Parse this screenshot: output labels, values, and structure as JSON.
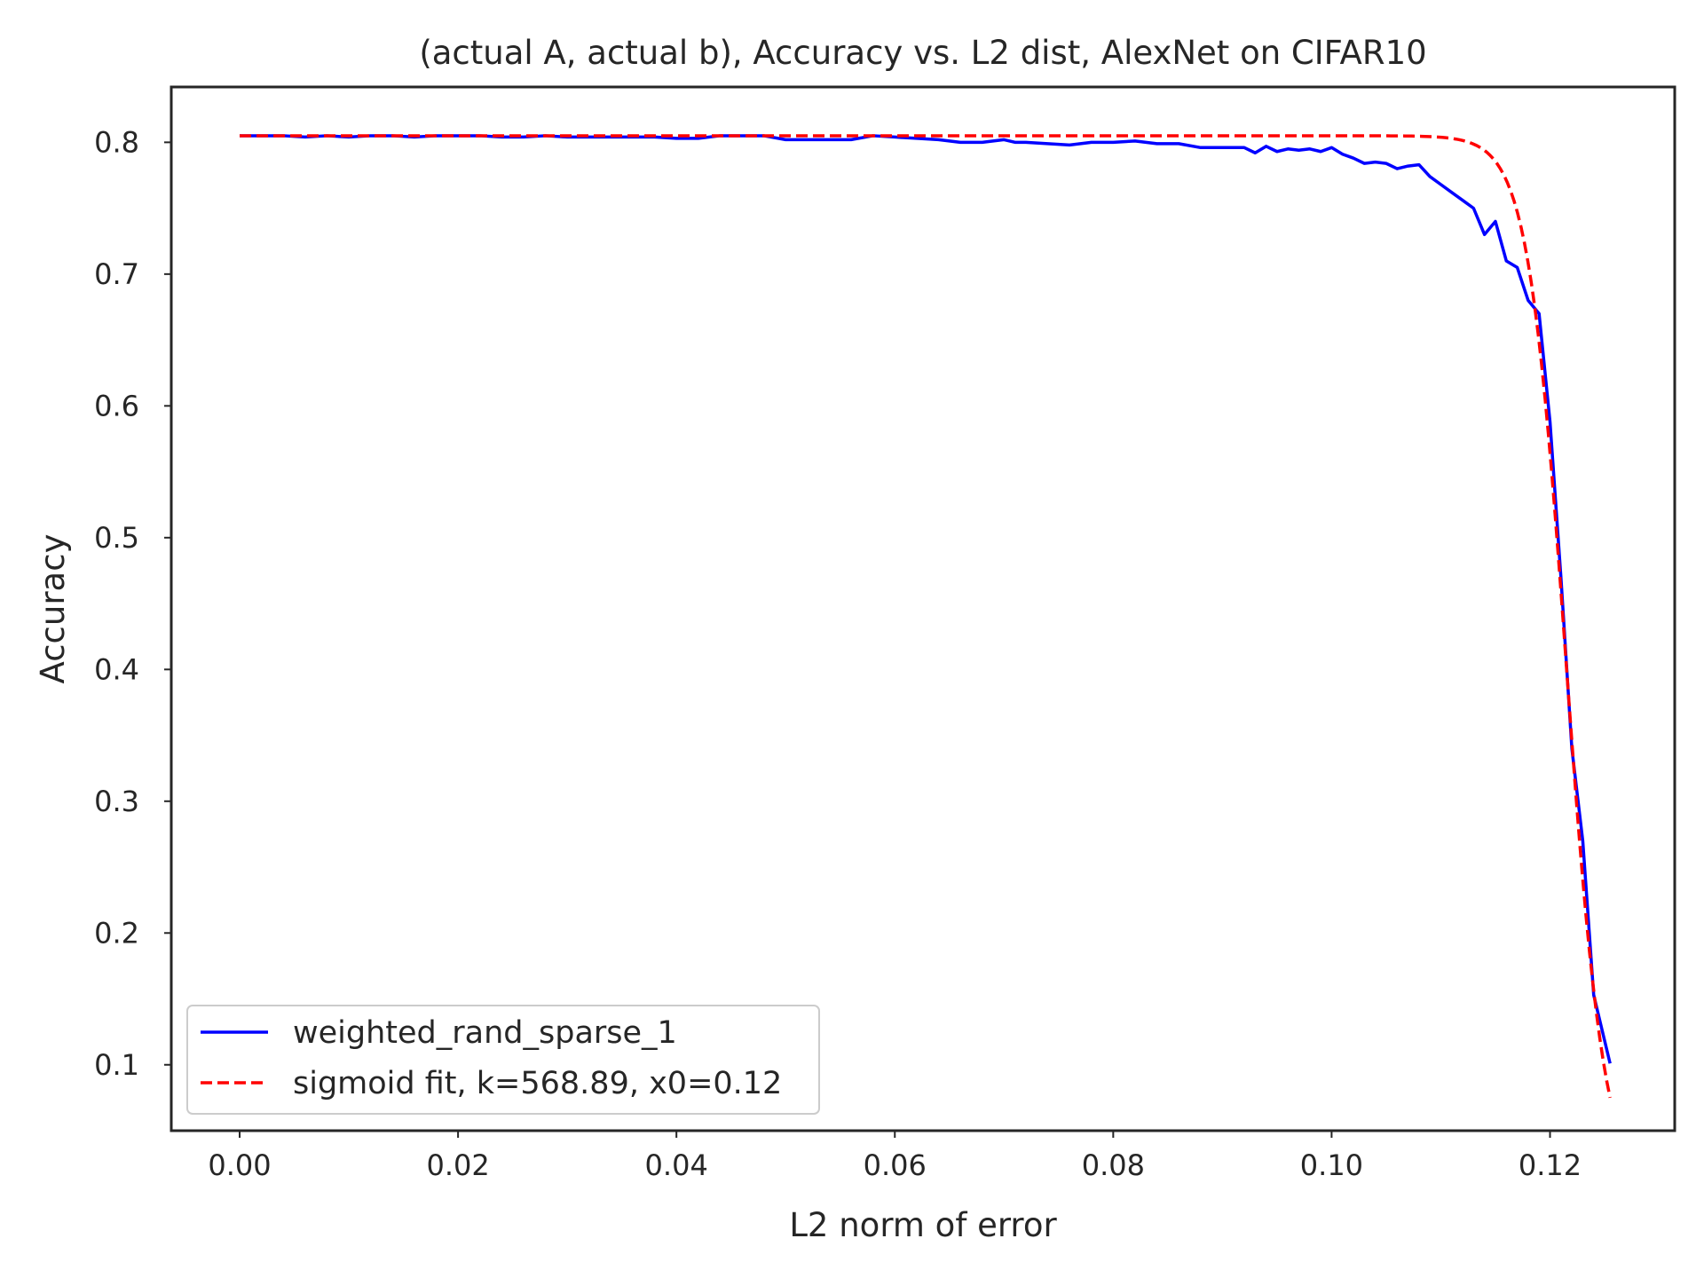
{
  "chart_data": {
    "type": "line",
    "title": "(actual A, actual b), Accuracy vs. L2 dist, AlexNet on CIFAR10",
    "xlabel": "L2 norm of error",
    "ylabel": "Accuracy",
    "xlim": [
      -0.00626,
      0.13142
    ],
    "ylim": [
      0.05,
      0.842
    ],
    "xticks": [
      0.0,
      0.02,
      0.04,
      0.06,
      0.08,
      0.1,
      0.12
    ],
    "xtick_labels": [
      "0.00",
      "0.02",
      "0.04",
      "0.06",
      "0.08",
      "0.10",
      "0.12"
    ],
    "yticks": [
      0.1,
      0.2,
      0.3,
      0.4,
      0.5,
      0.6,
      0.7,
      0.8
    ],
    "ytick_labels": [
      "0.1",
      "0.2",
      "0.3",
      "0.4",
      "0.5",
      "0.6",
      "0.7",
      "0.8"
    ],
    "grid": false,
    "legend": "lower-left",
    "series": [
      {
        "name": "weighted_rand_sparse_1",
        "color": "#0000ff",
        "style": "solid",
        "x": [
          0.0,
          0.002,
          0.004,
          0.006,
          0.008,
          0.01,
          0.012,
          0.014,
          0.016,
          0.018,
          0.02,
          0.022,
          0.024,
          0.026,
          0.028,
          0.03,
          0.032,
          0.034,
          0.036,
          0.038,
          0.04,
          0.042,
          0.044,
          0.046,
          0.048,
          0.05,
          0.052,
          0.054,
          0.056,
          0.058,
          0.06,
          0.062,
          0.064,
          0.066,
          0.068,
          0.07,
          0.071,
          0.072,
          0.074,
          0.076,
          0.078,
          0.08,
          0.082,
          0.084,
          0.086,
          0.088,
          0.09,
          0.092,
          0.093,
          0.094,
          0.095,
          0.096,
          0.097,
          0.098,
          0.099,
          0.1,
          0.101,
          0.102,
          0.103,
          0.104,
          0.105,
          0.106,
          0.107,
          0.108,
          0.109,
          0.11,
          0.111,
          0.112,
          0.113,
          0.114,
          0.115,
          0.116,
          0.117,
          0.118,
          0.119,
          0.12,
          0.121,
          0.122,
          0.123,
          0.124,
          0.1255
        ],
        "y": [
          0.805,
          0.805,
          0.805,
          0.804,
          0.805,
          0.804,
          0.805,
          0.805,
          0.804,
          0.805,
          0.805,
          0.805,
          0.804,
          0.804,
          0.805,
          0.804,
          0.804,
          0.804,
          0.804,
          0.804,
          0.803,
          0.803,
          0.805,
          0.805,
          0.805,
          0.802,
          0.802,
          0.802,
          0.802,
          0.805,
          0.804,
          0.803,
          0.802,
          0.8,
          0.8,
          0.802,
          0.8,
          0.8,
          0.799,
          0.798,
          0.8,
          0.8,
          0.801,
          0.799,
          0.799,
          0.796,
          0.796,
          0.796,
          0.792,
          0.797,
          0.793,
          0.795,
          0.794,
          0.795,
          0.793,
          0.796,
          0.791,
          0.788,
          0.784,
          0.785,
          0.784,
          0.78,
          0.782,
          0.783,
          0.774,
          0.768,
          0.762,
          0.756,
          0.75,
          0.73,
          0.74,
          0.71,
          0.705,
          0.68,
          0.67,
          0.588,
          0.47,
          0.34,
          0.27,
          0.153,
          0.101
        ]
      },
      {
        "name": "sigmoid fit, k=568.89, x0=0.12",
        "color": "#ff0000",
        "style": "dashed",
        "k": 568.89,
        "x0": 0.1215,
        "L": 0.805,
        "x_range": [
          0.0,
          0.1255
        ]
      }
    ]
  }
}
